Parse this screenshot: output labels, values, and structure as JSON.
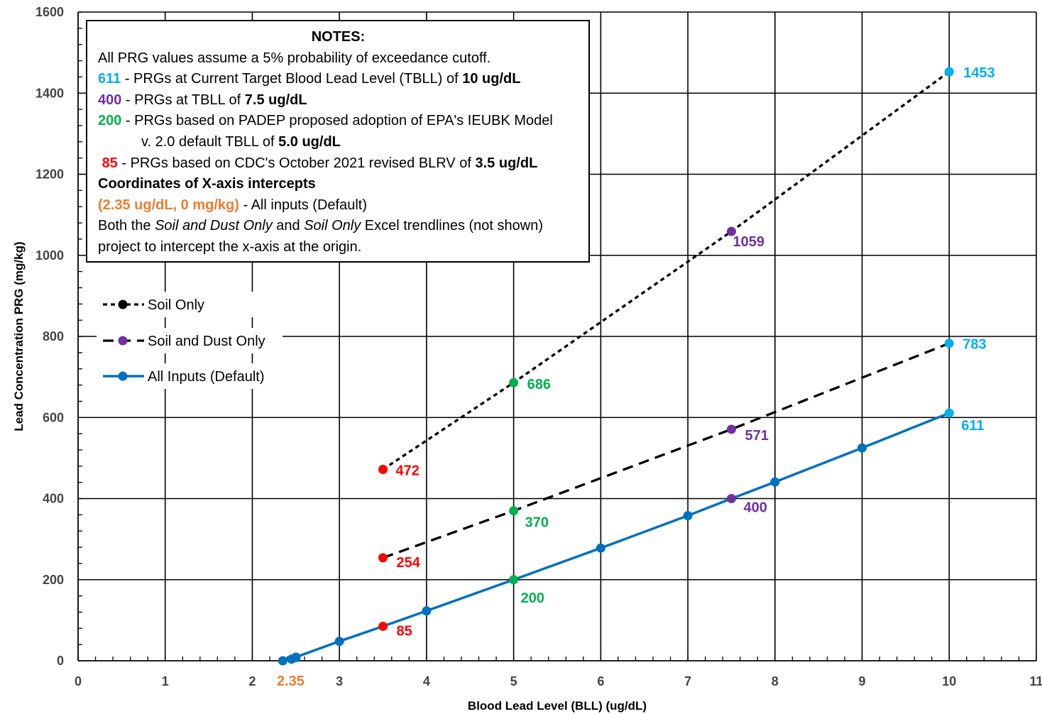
{
  "colors": {
    "cyan": "#00b0f0",
    "purple": "#7030a0",
    "green": "#00b050",
    "red": "#ff0000",
    "orange": "#ed7d31",
    "blue": "#0070c0",
    "black": "#000000"
  },
  "notes": {
    "title": "NOTES:",
    "line1": "All PRG values assume a 5% probability of exceedance cutoff.",
    "line2": {
      "key": "611",
      "text": " - PRGs at Current Target Blood Lead Level (TBLL) of ",
      "bold": "10 ug/dL"
    },
    "line3": {
      "key": "400",
      "text": " - PRGs at TBLL of ",
      "bold": "7.5 ug/dL"
    },
    "line4": {
      "key": "200",
      "text": " - PRGs based on PADEP proposed adoption of EPA's IEUBK Model"
    },
    "line5": {
      "text": "v. 2.0 default TBLL of ",
      "bold": "5.0 ug/dL"
    },
    "line6": {
      "key": "85",
      "text": " - PRGs based on CDC's October 2021 revised BLRV of ",
      "bold": "3.5 ug/dL"
    },
    "line7": "Coordinates of X-axis intercepts",
    "line8": {
      "key": "(2.35 ug/dL, 0 mg/kg)",
      "text": " - All inputs (Default)"
    },
    "line9": {
      "a": "Both the ",
      "i1": "Soil and Dust Only",
      "b": " and ",
      "i2": "Soil Only",
      "c": " Excel trendlines (not shown)"
    },
    "line10": "project to intercept the x-axis at the origin."
  },
  "chart_data": {
    "type": "line",
    "xlabel": "Blood Lead Level (BLL) (ug/dL)",
    "ylabel": "Lead Concentration PRG (mg/kg)",
    "xlim": [
      0,
      11
    ],
    "ylim": [
      0,
      1600
    ],
    "x_ticks": [
      "0",
      "1",
      "2",
      "3",
      "4",
      "5",
      "6",
      "7",
      "8",
      "9",
      "10",
      "11"
    ],
    "y_ticks": [
      "0",
      "200",
      "400",
      "600",
      "800",
      "1000",
      "1200",
      "1400",
      "1600"
    ],
    "x_intercept_label": "2.35",
    "grid": true,
    "legend_position": "upper-left",
    "series": [
      {
        "name": "Soil Only",
        "style": "dotted",
        "line_color": "#000000",
        "points": [
          {
            "x": 3.5,
            "y": 472,
            "label": "472",
            "color": "#ff0000"
          },
          {
            "x": 5,
            "y": 686,
            "label": "686",
            "color": "#00b050"
          },
          {
            "x": 7.5,
            "y": 1059,
            "label": "1059",
            "color": "#7030a0"
          },
          {
            "x": 10,
            "y": 1453,
            "label": "1453",
            "color": "#00b0f0"
          }
        ]
      },
      {
        "name": "Soil and Dust Only",
        "style": "dashed",
        "line_color": "#000000",
        "points": [
          {
            "x": 3.5,
            "y": 254,
            "label": "254",
            "color": "#ff0000"
          },
          {
            "x": 5,
            "y": 370,
            "label": "370",
            "color": "#00b050"
          },
          {
            "x": 7.5,
            "y": 571,
            "label": "571",
            "color": "#7030a0"
          },
          {
            "x": 10,
            "y": 783,
            "label": "783",
            "color": "#00b0f0"
          }
        ]
      },
      {
        "name": "All Inputs (Default)",
        "style": "solid",
        "line_color": "#0070c0",
        "points": [
          {
            "x": 2.35,
            "y": 0,
            "color": "#0070c0"
          },
          {
            "x": 2.45,
            "y": 4,
            "color": "#0070c0"
          },
          {
            "x": 2.5,
            "y": 8,
            "color": "#0070c0"
          },
          {
            "x": 2.5,
            "y": 9,
            "color": "#0070c0"
          },
          {
            "x": 3,
            "y": 48,
            "color": "#0070c0"
          },
          {
            "x": 3.5,
            "y": 85,
            "label": "85",
            "color": "#ff0000"
          },
          {
            "x": 4,
            "y": 123,
            "color": "#0070c0"
          },
          {
            "x": 5,
            "y": 200,
            "label": "200",
            "color": "#00b050"
          },
          {
            "x": 6,
            "y": 278,
            "color": "#0070c0"
          },
          {
            "x": 7,
            "y": 358,
            "color": "#0070c0"
          },
          {
            "x": 7.5,
            "y": 400,
            "label": "400",
            "color": "#7030a0"
          },
          {
            "x": 8,
            "y": 441,
            "color": "#0070c0"
          },
          {
            "x": 9,
            "y": 525,
            "color": "#0070c0"
          },
          {
            "x": 10,
            "y": 611,
            "label": "611",
            "color": "#00b0f0"
          }
        ]
      }
    ]
  }
}
